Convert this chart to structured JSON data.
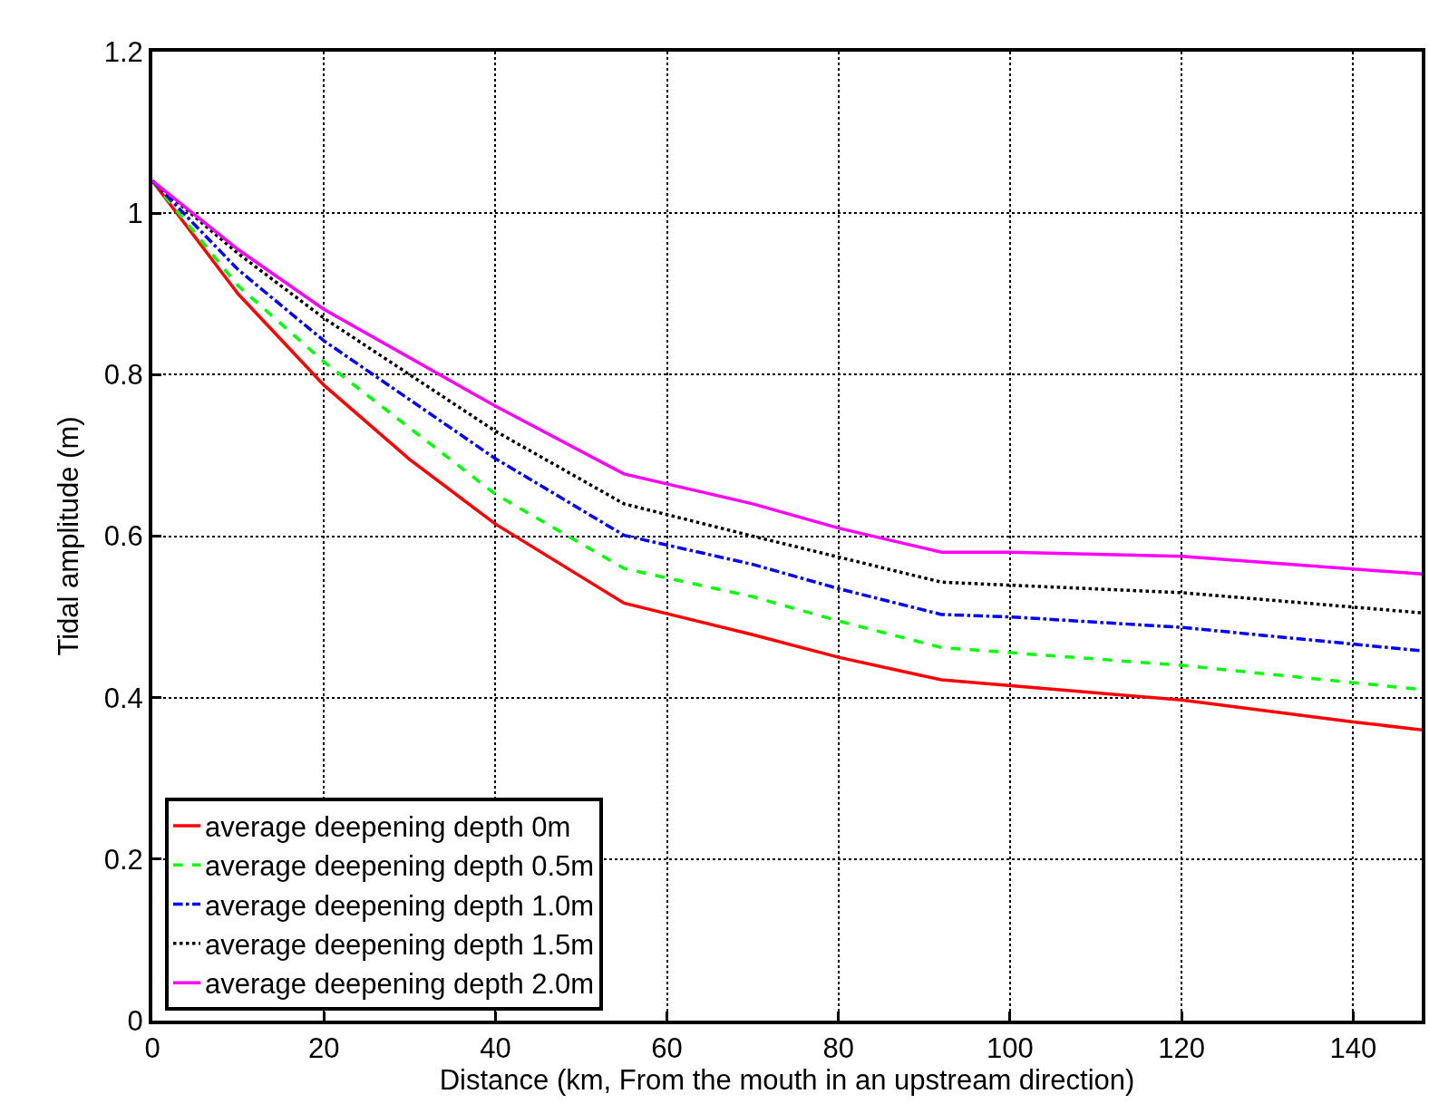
{
  "chart_data": {
    "type": "line",
    "xlabel": "Distance (km, From the mouth in an upstream direction)",
    "ylabel": "Tidal amplitude (m)",
    "xlim": [
      0,
      148
    ],
    "xticks": [
      0,
      20,
      40,
      60,
      80,
      100,
      120,
      140
    ],
    "ylim": [
      0,
      1.2
    ],
    "yticks": [
      0,
      {
        "value": 0.2,
        "label": "0.2"
      },
      {
        "value": 0.4,
        "label": "0.4"
      },
      {
        "value": 0.6,
        "label": "0.6"
      },
      {
        "value": 0.8,
        "label": "0.8"
      },
      1,
      {
        "value": 1.2,
        "label": "1.2"
      }
    ],
    "grid": true,
    "legend": "bottom left",
    "series": [
      {
        "name": "average deepening depth 0m",
        "color": "#ff0000",
        "line_style": "solid",
        "x": [
          0,
          10,
          20,
          30,
          40,
          55,
          70,
          80,
          92,
          120,
          140,
          148
        ],
        "values": [
          1.04,
          0.9,
          0.787,
          0.695,
          0.615,
          0.517,
          0.478,
          0.45,
          0.422,
          0.397,
          0.37,
          0.36
        ]
      },
      {
        "name": "average deepening depth 0.5m",
        "color": "#00ff00",
        "line_style": "dashed",
        "x": [
          0,
          10,
          20,
          40,
          55,
          70,
          80,
          92,
          120,
          148
        ],
        "values": [
          1.04,
          0.91,
          0.816,
          0.652,
          0.56,
          0.525,
          0.495,
          0.462,
          0.44,
          0.41
        ]
      },
      {
        "name": "average deepening depth 1.0m",
        "color": "#0000ff",
        "line_style": "dashdot",
        "x": [
          0,
          10,
          20,
          40,
          55,
          70,
          80,
          92,
          100,
          120,
          148
        ],
        "values": [
          1.04,
          0.93,
          0.842,
          0.696,
          0.601,
          0.565,
          0.535,
          0.503,
          0.5,
          0.487,
          0.458
        ]
      },
      {
        "name": "average deepening depth 1.5m",
        "color": "#000000",
        "line_style": "dotted",
        "x": [
          0,
          10,
          20,
          40,
          55,
          70,
          92,
          120,
          148
        ],
        "values": [
          1.04,
          0.95,
          0.87,
          0.73,
          0.64,
          0.6,
          0.543,
          0.53,
          0.505
        ]
      },
      {
        "name": "average deepening depth 2.0m",
        "color": "#ff00ff",
        "line_style": "solid",
        "x": [
          0,
          10,
          20,
          40,
          55,
          70,
          80,
          92,
          100,
          120,
          148
        ],
        "values": [
          1.04,
          0.955,
          0.881,
          0.761,
          0.677,
          0.64,
          0.61,
          0.58,
          0.58,
          0.575,
          0.553
        ]
      }
    ]
  }
}
